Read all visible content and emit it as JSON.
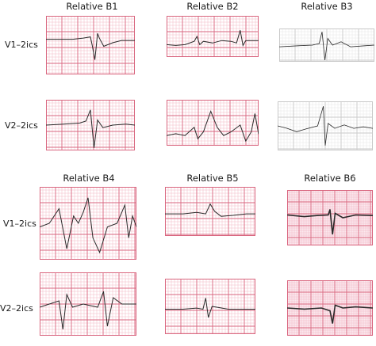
{
  "figure": {
    "panels": [
      {
        "title": "Relative B1",
        "leads": [
          "V1–2ics",
          "V2–2ics"
        ]
      },
      {
        "title": "Relative B2"
      },
      {
        "title": "Relative B3"
      },
      {
        "title": "Relative B4",
        "leads": [
          "V1–2ics",
          "V2–2ics"
        ]
      },
      {
        "title": "Relative B5"
      },
      {
        "title": "Relative B6"
      }
    ],
    "grid_colors": {
      "light_pink_grid": "#f2b7c4",
      "dark_pink_grid": "#d9667f",
      "grey_grid": "#c9c9c9",
      "trace": "#2a2a2a"
    }
  }
}
